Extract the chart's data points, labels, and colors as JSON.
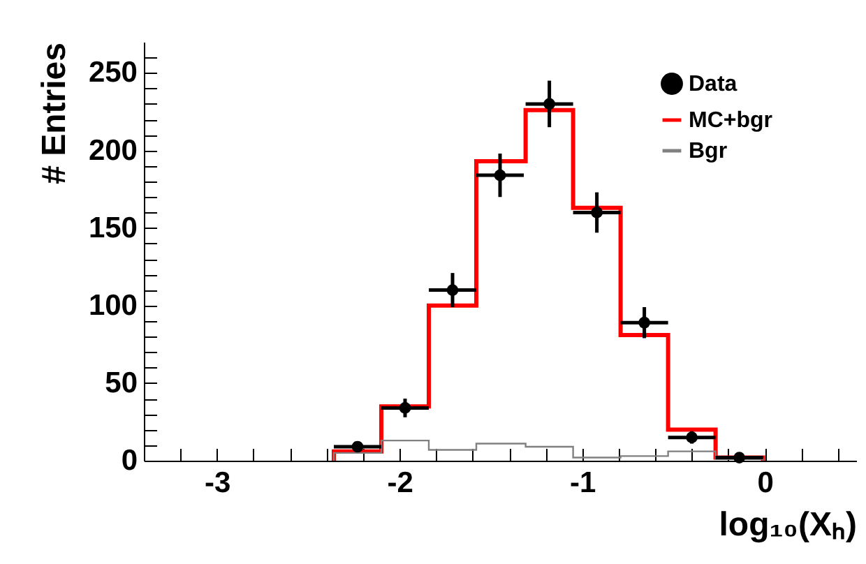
{
  "chart_data": {
    "type": "histogram",
    "xlabel": "log₁₀(Xₕ)",
    "ylabel": "# Entries",
    "bins": [
      -2.36,
      -2.1,
      -1.84,
      -1.58,
      -1.31,
      -1.05,
      -0.79,
      -0.53,
      -0.27,
      -0.01
    ],
    "series": [
      {
        "name": "Data",
        "type": "scatter",
        "color": "#000000",
        "x": [
          -2.23,
          -1.97,
          -1.71,
          -1.45,
          -1.18,
          -0.92,
          -0.66,
          -0.4,
          -0.14
        ],
        "values": [
          9,
          34,
          110,
          184,
          230,
          160,
          89,
          15,
          2
        ],
        "errors": [
          3,
          6,
          11,
          14,
          15,
          13,
          10,
          4,
          1
        ],
        "xerrors": [
          0.13,
          0.13,
          0.13,
          0.13,
          0.13,
          0.13,
          0.13,
          0.13,
          0.13
        ]
      },
      {
        "name": "MC+bgr",
        "color": "#ff0000",
        "values": [
          6,
          35,
          100,
          193,
          226,
          163,
          81,
          20,
          2
        ]
      },
      {
        "name": "Bgr",
        "color": "#808080",
        "values": [
          5,
          13,
          7,
          11,
          9,
          2,
          3,
          6,
          1
        ]
      }
    ],
    "xlim": [
      -3.4,
      0.5
    ],
    "xticks": [
      {
        "value": -3.4,
        "label": null
      },
      {
        "value": -3.2,
        "label": null
      },
      -3,
      {
        "value": -2.8,
        "label": null
      },
      {
        "value": -2.6,
        "label": null
      },
      {
        "value": -2.4,
        "label": null
      },
      {
        "value": -2.2,
        "label": null
      },
      -2,
      {
        "value": -1.8,
        "label": null
      },
      {
        "value": -1.6,
        "label": null
      },
      {
        "value": -1.4,
        "label": null
      },
      {
        "value": -1.2,
        "label": null
      },
      -1,
      {
        "value": -0.8,
        "label": null
      },
      {
        "value": -0.6,
        "label": null
      },
      {
        "value": -0.4,
        "label": null
      },
      {
        "value": -0.2,
        "label": null
      },
      0,
      {
        "value": 0.2,
        "label": null
      },
      {
        "value": 0.4,
        "label": null
      }
    ],
    "ylim": [
      0,
      270
    ],
    "yticks": [
      0,
      {
        "value": 10,
        "label": null
      },
      {
        "value": 20,
        "label": null
      },
      {
        "value": 30,
        "label": null
      },
      {
        "value": 40,
        "label": null
      },
      50,
      {
        "value": 60,
        "label": null
      },
      {
        "value": 70,
        "label": null
      },
      {
        "value": 80,
        "label": null
      },
      {
        "value": 90,
        "label": null
      },
      100,
      {
        "value": 110,
        "label": null
      },
      {
        "value": 120,
        "label": null
      },
      {
        "value": 130,
        "label": null
      },
      {
        "value": 140,
        "label": null
      },
      150,
      {
        "value": 160,
        "label": null
      },
      {
        "value": 170,
        "label": null
      },
      {
        "value": 180,
        "label": null
      },
      {
        "value": 190,
        "label": null
      },
      200,
      {
        "value": 210,
        "label": null
      },
      {
        "value": 220,
        "label": null
      },
      {
        "value": 230,
        "label": null
      },
      {
        "value": 240,
        "label": null
      },
      250,
      {
        "value": 260,
        "label": null
      }
    ],
    "legend": "top right",
    "marker": "circle",
    "grid": false
  }
}
